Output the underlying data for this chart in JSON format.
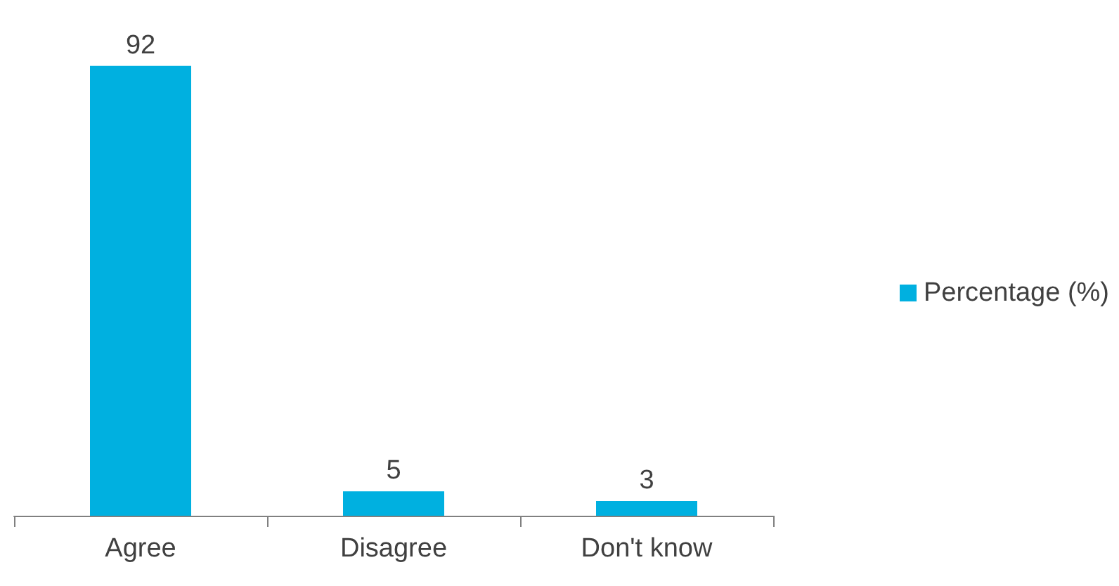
{
  "chart_data": {
    "type": "bar",
    "categories": [
      "Agree",
      "Disagree",
      "Don't know"
    ],
    "series": [
      {
        "name": "Percentage (%)",
        "color": "#00b0e0",
        "values": [
          92,
          5,
          3
        ]
      }
    ],
    "data_labels": true,
    "legend": "right",
    "grid": false
  }
}
